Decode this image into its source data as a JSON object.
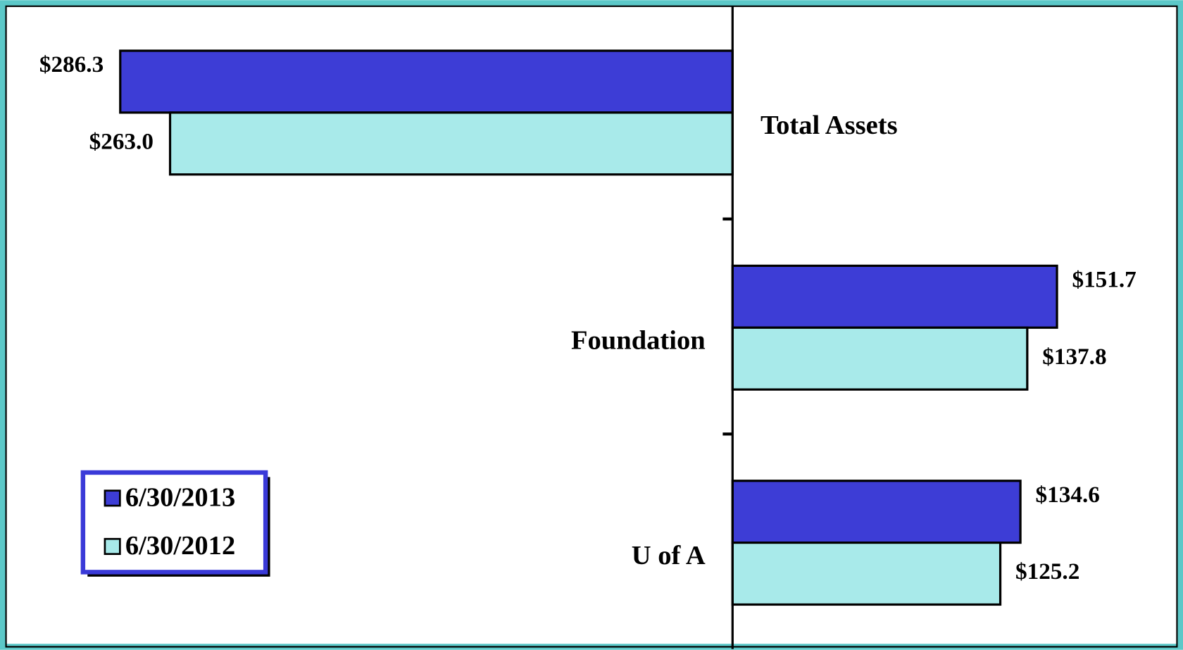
{
  "chart_data": {
    "type": "bar",
    "orientation": "horizontal",
    "categories": [
      "Total Assets",
      "Foundation",
      "U of A"
    ],
    "series": [
      {
        "name": "6/30/2013",
        "color": "#3d3dd6",
        "values": [
          -286.3,
          151.7,
          134.6
        ],
        "value_labels": [
          "$286.3",
          "$151.7",
          "$134.6"
        ]
      },
      {
        "name": "6/30/2012",
        "color": "#a8eaea",
        "values": [
          -263.0,
          137.8,
          125.2
        ],
        "value_labels": [
          "$263.0",
          "$137.8",
          "$125.2"
        ]
      }
    ],
    "xlim": [
      -339.7,
      207.8
    ],
    "legend": "lower left"
  }
}
